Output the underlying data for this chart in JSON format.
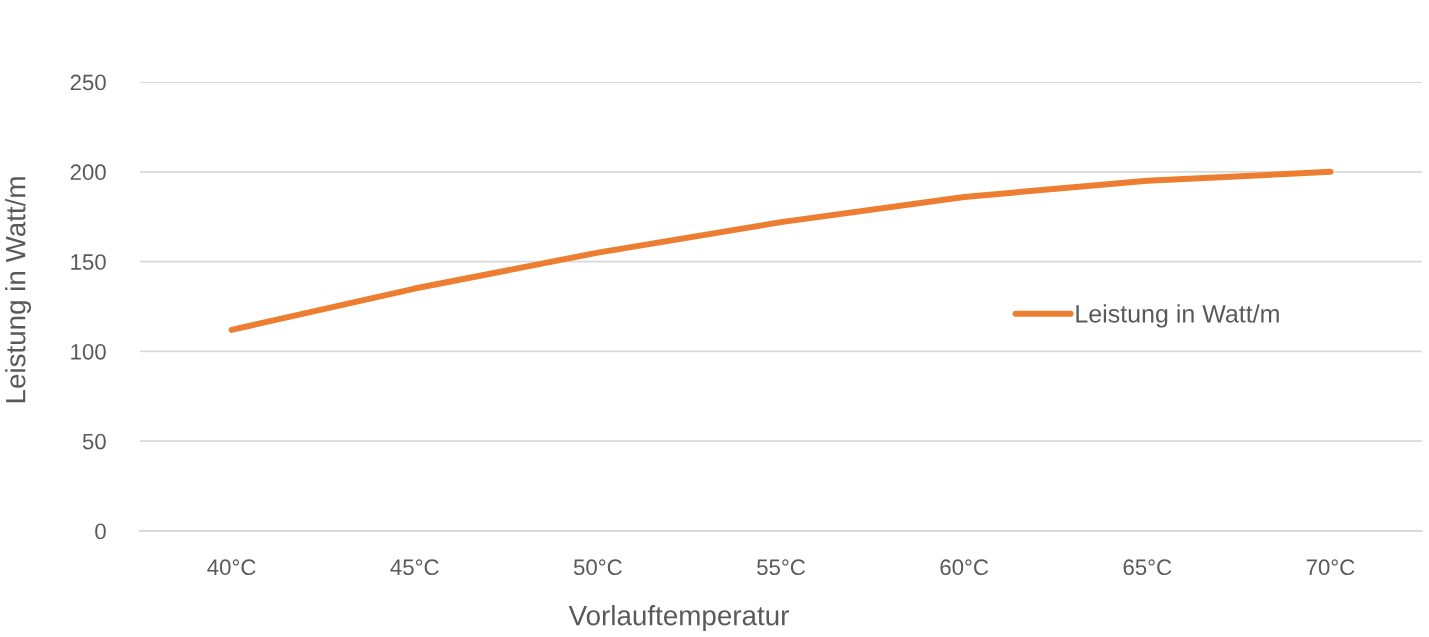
{
  "chart_data": {
    "type": "line",
    "xlabel": "Vorlauftemperatur",
    "ylabel": "Leistung in Watt/m",
    "categories": [
      "40°C",
      "45°C",
      "50°C",
      "55°C",
      "60°C",
      "65°C",
      "70°C"
    ],
    "series": [
      {
        "name": "Leistung in Watt/m",
        "color": "#ed7d31",
        "values": [
          112,
          135,
          155,
          172,
          186,
          195,
          200
        ]
      }
    ],
    "ylim": [
      0,
      250
    ],
    "yticks": [
      0,
      50,
      100,
      150,
      200,
      250
    ],
    "grid": "y",
    "legend": "right",
    "marker": "none",
    "line_style": "solid"
  }
}
